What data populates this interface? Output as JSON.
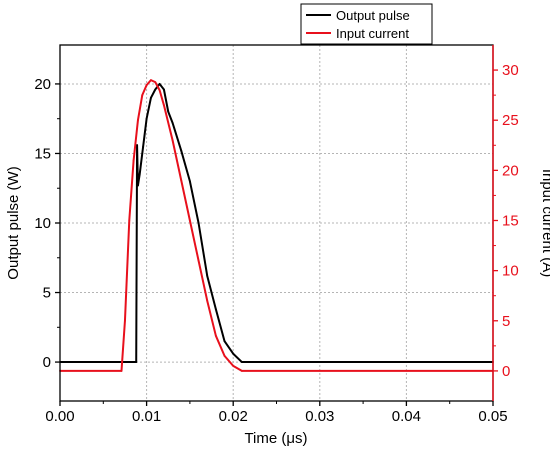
{
  "chart_data": {
    "type": "line",
    "xlabel": "Time (μs)",
    "ylabel_left": "Output pulse (W)",
    "ylabel_right": "Input current (A)",
    "xlim": [
      0.0,
      0.05
    ],
    "ylim_left": [
      -2.8,
      22.8
    ],
    "ylim_right": [
      -3.0,
      32.5
    ],
    "x_ticks": [
      "0.00",
      "0.01",
      "0.02",
      "0.03",
      "0.04",
      "0.05"
    ],
    "y_left_ticks": [
      "0",
      "5",
      "10",
      "15",
      "20"
    ],
    "y_right_ticks": [
      "0",
      "5",
      "10",
      "15",
      "20",
      "25",
      "30"
    ],
    "grid": true,
    "legend_position": "top-right",
    "colors": {
      "left_axis": "#000000",
      "right_axis": "#e8101c"
    },
    "series": [
      {
        "name": "Output pulse",
        "axis": "left",
        "color": "#000000",
        "x": [
          0.0,
          0.0085,
          0.0088,
          0.0089,
          0.009,
          0.0092,
          0.0096,
          0.01,
          0.0105,
          0.011,
          0.0115,
          0.012,
          0.0125,
          0.013,
          0.014,
          0.015,
          0.016,
          0.017,
          0.018,
          0.019,
          0.02,
          0.021,
          0.05
        ],
        "y": [
          0.0,
          0.0,
          0.0,
          15.6,
          12.7,
          13.5,
          15.5,
          17.5,
          19.0,
          19.6,
          20.0,
          19.6,
          18.0,
          17.2,
          15.2,
          13.0,
          10.0,
          6.2,
          3.8,
          1.5,
          0.6,
          0.0,
          0.0
        ]
      },
      {
        "name": "Input current",
        "axis": "right",
        "color": "#e8101c",
        "x": [
          0.0,
          0.0071,
          0.0075,
          0.008,
          0.0085,
          0.009,
          0.0095,
          0.01,
          0.0105,
          0.011,
          0.0115,
          0.012,
          0.013,
          0.014,
          0.015,
          0.016,
          0.017,
          0.018,
          0.019,
          0.02,
          0.021,
          0.05
        ],
        "y": [
          0.0,
          0.0,
          5.0,
          15.0,
          21.0,
          25.0,
          27.5,
          28.5,
          29.0,
          28.8,
          28.0,
          26.5,
          23.0,
          19.0,
          15.0,
          11.0,
          7.0,
          3.5,
          1.5,
          0.5,
          0.0,
          0.0
        ]
      }
    ]
  }
}
